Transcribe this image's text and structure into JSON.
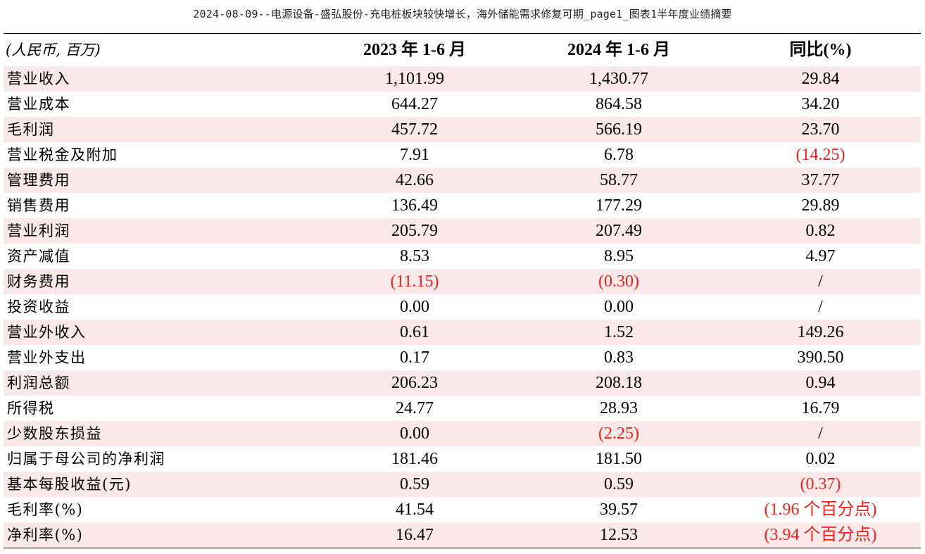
{
  "title": "2024-08-09--电源设备-盛弘股份-充电桩板块较快增长，海外储能需求修复可期_page1_图表1半年度业绩摘要",
  "table": {
    "headers": [
      "(人民币, 百万)",
      "2023 年 1-6 月",
      "2024 年 1-6 月",
      "同比(%)"
    ],
    "rows": [
      {
        "label": "营业收入",
        "v2023": "1,101.99",
        "v2024": "1,430.77",
        "yoy": "29.84",
        "neg2023": false,
        "neg2024": false,
        "negYoy": false
      },
      {
        "label": "营业成本",
        "v2023": "644.27",
        "v2024": "864.58",
        "yoy": "34.20",
        "neg2023": false,
        "neg2024": false,
        "negYoy": false
      },
      {
        "label": "毛利润",
        "v2023": "457.72",
        "v2024": "566.19",
        "yoy": "23.70",
        "neg2023": false,
        "neg2024": false,
        "negYoy": false
      },
      {
        "label": "营业税金及附加",
        "v2023": "7.91",
        "v2024": "6.78",
        "yoy": "(14.25)",
        "neg2023": false,
        "neg2024": false,
        "negYoy": true
      },
      {
        "label": "管理费用",
        "v2023": "42.66",
        "v2024": "58.77",
        "yoy": "37.77",
        "neg2023": false,
        "neg2024": false,
        "negYoy": false
      },
      {
        "label": "销售费用",
        "v2023": "136.49",
        "v2024": "177.29",
        "yoy": "29.89",
        "neg2023": false,
        "neg2024": false,
        "negYoy": false
      },
      {
        "label": "营业利润",
        "v2023": "205.79",
        "v2024": "207.49",
        "yoy": "0.82",
        "neg2023": false,
        "neg2024": false,
        "negYoy": false
      },
      {
        "label": "资产减值",
        "v2023": "8.53",
        "v2024": "8.95",
        "yoy": "4.97",
        "neg2023": false,
        "neg2024": false,
        "negYoy": false
      },
      {
        "label": "财务费用",
        "v2023": "(11.15)",
        "v2024": "(0.30)",
        "yoy": "/",
        "neg2023": true,
        "neg2024": true,
        "negYoy": false
      },
      {
        "label": "投资收益",
        "v2023": "0.00",
        "v2024": "0.00",
        "yoy": "/",
        "neg2023": false,
        "neg2024": false,
        "negYoy": false
      },
      {
        "label": "营业外收入",
        "v2023": "0.61",
        "v2024": "1.52",
        "yoy": "149.26",
        "neg2023": false,
        "neg2024": false,
        "negYoy": false
      },
      {
        "label": "营业外支出",
        "v2023": "0.17",
        "v2024": "0.83",
        "yoy": "390.50",
        "neg2023": false,
        "neg2024": false,
        "negYoy": false
      },
      {
        "label": "利润总额",
        "v2023": "206.23",
        "v2024": "208.18",
        "yoy": "0.94",
        "neg2023": false,
        "neg2024": false,
        "negYoy": false
      },
      {
        "label": "所得税",
        "v2023": "24.77",
        "v2024": "28.93",
        "yoy": "16.79",
        "neg2023": false,
        "neg2024": false,
        "negYoy": false
      },
      {
        "label": "少数股东损益",
        "v2023": "0.00",
        "v2024": "(2.25)",
        "yoy": "/",
        "neg2023": false,
        "neg2024": true,
        "negYoy": false
      },
      {
        "label": "归属于母公司的净利润",
        "v2023": "181.46",
        "v2024": "181.50",
        "yoy": "0.02",
        "neg2023": false,
        "neg2024": false,
        "negYoy": false
      },
      {
        "label": "基本每股收益(元)",
        "v2023": "0.59",
        "v2024": "0.59",
        "yoy": "(0.37)",
        "neg2023": false,
        "neg2024": false,
        "negYoy": true
      },
      {
        "label": "毛利率(%)",
        "v2023": "41.54",
        "v2024": "39.57",
        "yoy": "(1.96 个百分点)",
        "neg2023": false,
        "neg2024": false,
        "negYoy": true
      },
      {
        "label": "净利率(%)",
        "v2023": "16.47",
        "v2024": "12.53",
        "yoy": "(3.94 个百分点)",
        "neg2023": false,
        "neg2024": false,
        "negYoy": true
      }
    ]
  },
  "colors": {
    "negative": "#e5231e",
    "stripe": "#fbe8e8"
  }
}
